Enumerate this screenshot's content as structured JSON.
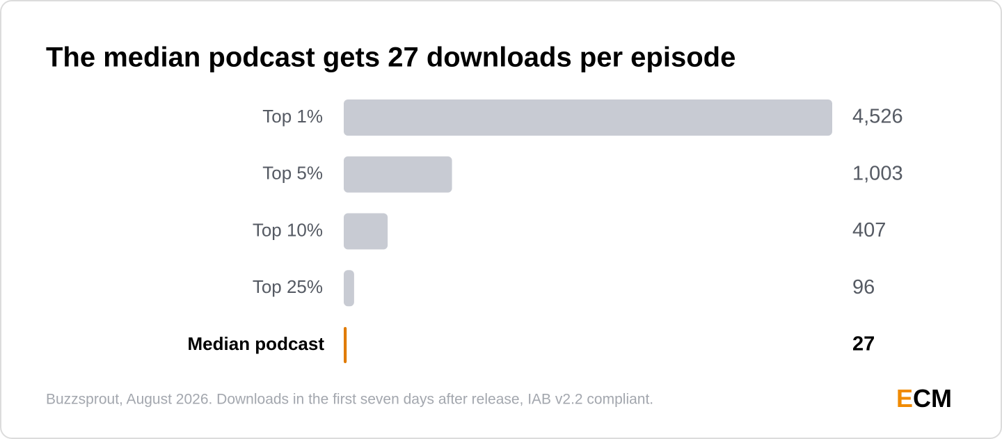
{
  "chart_data": {
    "type": "hbar",
    "title": "The median podcast gets 27 downloads per episode",
    "categories": [
      "Top 1%",
      "Top 5%",
      "Top 10%",
      "Top 25%",
      "Median podcast"
    ],
    "values": [
      4526,
      1003,
      407,
      96,
      27
    ],
    "value_labels": [
      "4,526",
      "1,003",
      "407",
      "96",
      "27"
    ],
    "colors": [
      "#c8cbd3",
      "#c8cbd3",
      "#c8cbd3",
      "#c8cbd3",
      "#e07b00"
    ],
    "emphasis": [
      false,
      false,
      false,
      false,
      true
    ],
    "source": "Buzzsprout, August 2026. Downloads in the first seven days after release, IAB v2.2 compliant.",
    "logo": [
      "E",
      "CM"
    ],
    "logo_colors": [
      "#f08a00",
      "#000000"
    ]
  }
}
